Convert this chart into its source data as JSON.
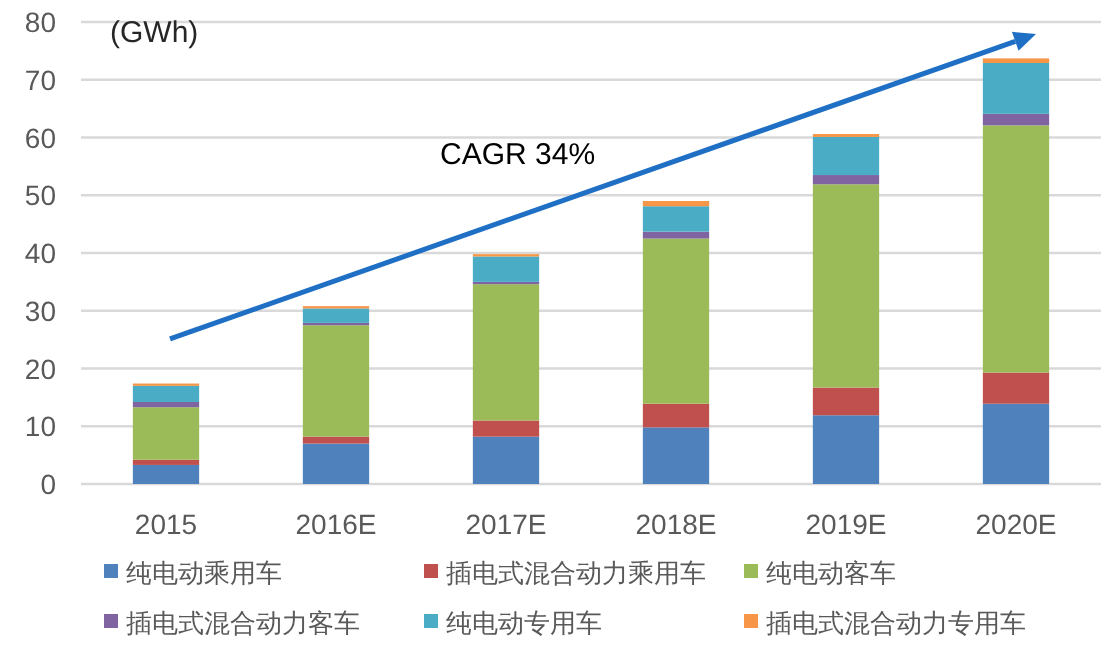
{
  "chart_data": {
    "type": "bar",
    "stacked": true,
    "ylabel": "(GWh)",
    "categories": [
      "2015",
      "2016E",
      "2017E",
      "2018E",
      "2019E",
      "2020E"
    ],
    "series": [
      {
        "name": "纯电动乘用车",
        "color": "#4f81bd",
        "values": [
          3.3,
          7.0,
          8.2,
          9.8,
          11.9,
          13.9
        ]
      },
      {
        "name": "插电式混合动力乘用车",
        "color": "#c0504d",
        "values": [
          0.9,
          1.2,
          2.8,
          4.1,
          4.8,
          5.4
        ]
      },
      {
        "name": "纯电动客车",
        "color": "#9bbb59",
        "values": [
          9.1,
          19.3,
          23.6,
          28.6,
          35.2,
          42.8
        ]
      },
      {
        "name": "插电式混合动力客车",
        "color": "#8064a2",
        "values": [
          0.9,
          0.4,
          0.4,
          1.2,
          1.6,
          2.0
        ]
      },
      {
        "name": "纯电动专用车",
        "color": "#4bacc6",
        "values": [
          2.8,
          2.5,
          4.4,
          4.4,
          6.6,
          8.8
        ]
      },
      {
        "name": "插电式混合动力专用车",
        "color": "#f79646",
        "values": [
          0.4,
          0.4,
          0.4,
          0.9,
          0.5,
          0.8
        ]
      }
    ],
    "ylim": [
      0,
      80
    ],
    "yticks": [
      0,
      10,
      20,
      30,
      40,
      50,
      60,
      70,
      80
    ],
    "grid": "y",
    "legend": "bottom",
    "annotations": [
      "CAGR 34%"
    ]
  }
}
